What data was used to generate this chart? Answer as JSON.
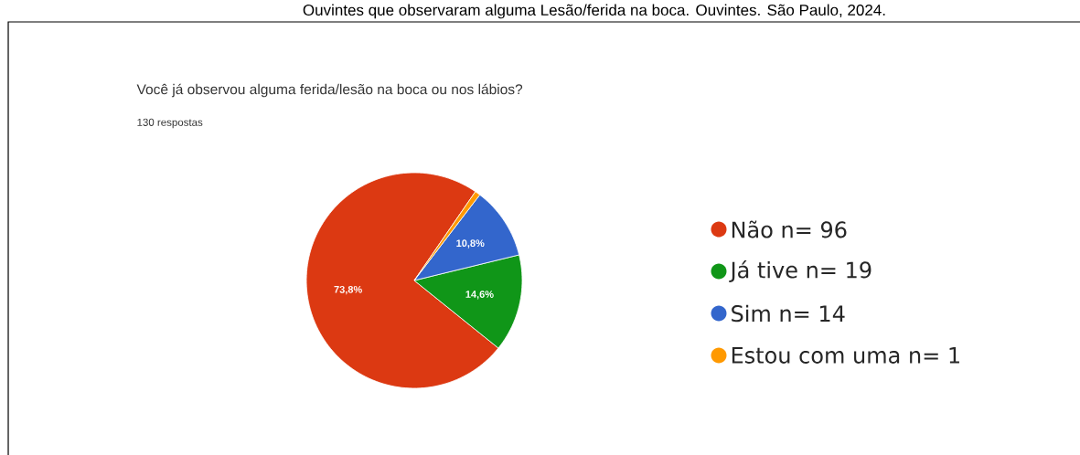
{
  "chart_data": {
    "type": "pie",
    "title": "Você já observou alguma ferida/lesão na boca ou nos lábios?",
    "subtitle": "130 respostas",
    "annotations": [
      "Ouvintes que observaram alguma Lesão/ferida na boca. Ouvintes. São Paulo, 2024."
    ],
    "categories": [
      "Não n= 96",
      "Já tive n= 19",
      "Sim n= 14",
      "Estou com uma n= 1"
    ],
    "values": [
      73.8,
      14.6,
      10.8,
      0.8
    ],
    "value_labels": [
      "73,8%",
      "14,6%",
      "10,8%",
      null
    ],
    "colors": [
      "#dc3912",
      "#109618",
      "#3366cc",
      "#ff9900"
    ],
    "legend": "right"
  }
}
